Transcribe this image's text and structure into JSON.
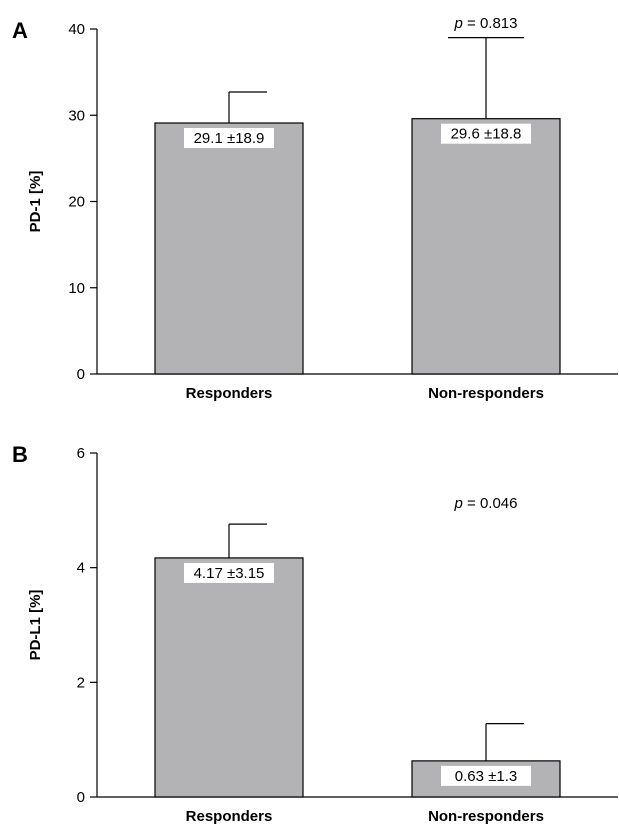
{
  "bar_color": "#b3b3b5",
  "chart_data": [
    {
      "panel": "A",
      "type": "bar",
      "ylabel": "PD-1 [%]",
      "categories": [
        "Responders",
        "Non-responders"
      ],
      "values": [
        29.1,
        29.6
      ],
      "error_upper": [
        32.7,
        39.0
      ],
      "value_labels": [
        "29.1 ±18.9",
        "29.6 ±18.8"
      ],
      "ylim": [
        0,
        40
      ],
      "yticks": [
        0,
        10,
        20,
        30,
        40
      ],
      "p_prefix": "p",
      "p_value": "= 0.813",
      "p_bracket": true
    },
    {
      "panel": "B",
      "type": "bar",
      "ylabel": "PD-L1 [%]",
      "categories": [
        "Responders",
        "Non-responders"
      ],
      "values": [
        4.17,
        0.63
      ],
      "error_upper": [
        4.76,
        1.28
      ],
      "value_labels": [
        "4.17 ±3.15",
        "0.63 ±1.3"
      ],
      "ylim": [
        0,
        6
      ],
      "yticks": [
        0,
        2,
        4,
        6
      ],
      "p_prefix": "p",
      "p_value": "= 0.046",
      "p_bracket": false
    }
  ]
}
